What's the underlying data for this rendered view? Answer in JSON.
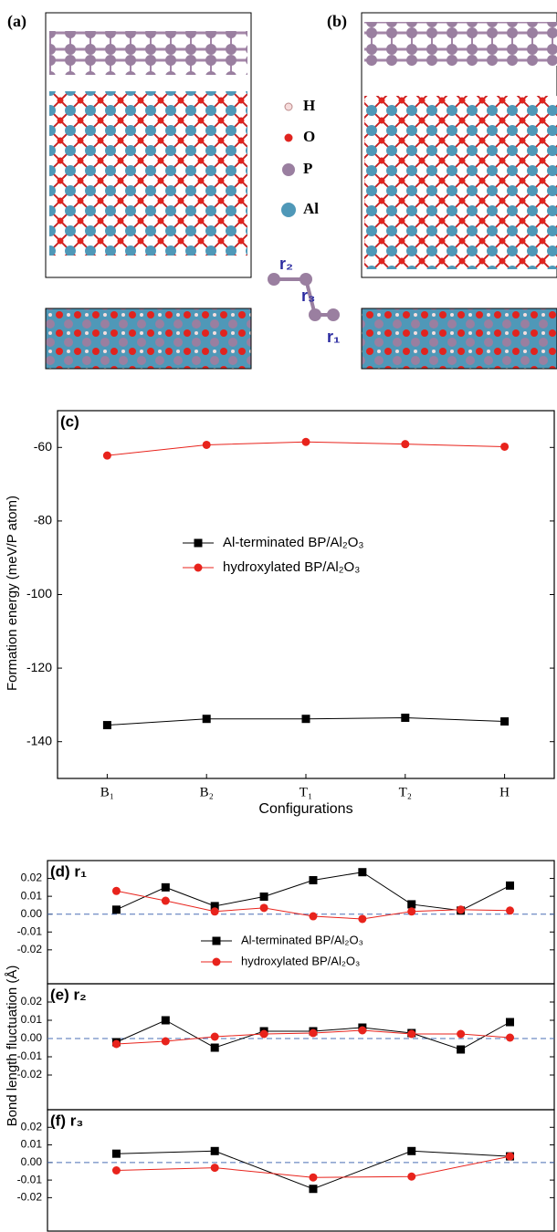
{
  "structure": {
    "panels": [
      "(a)",
      "(b)"
    ],
    "legend": [
      "H",
      "O",
      "P",
      "Al"
    ],
    "bonds": [
      "r₂",
      "r₃",
      "r₁"
    ]
  },
  "chart_data": [
    {
      "type": "line",
      "title": "(c)",
      "xlabel": "Configurations",
      "ylabel": "Formation energy (meV/P atom)",
      "categories": [
        "B₁",
        "B₂",
        "T₁",
        "T₂",
        "H"
      ],
      "ylim": [
        -150,
        -50
      ],
      "yticks": [
        -140,
        -120,
        -100,
        -80,
        -60
      ],
      "legend": "center",
      "series": [
        {
          "name": "Al-terminated BP/Al₂O₃",
          "color": "#000000",
          "marker": "square",
          "values": [
            -135.5,
            -133.8,
            -133.8,
            -133.5,
            -134.5
          ]
        },
        {
          "name": "hydroxylated  BP/Al₂O₃",
          "color": "#e8231c",
          "marker": "circle",
          "values": [
            -62.2,
            -59.3,
            -58.5,
            -59.1,
            -59.8
          ]
        }
      ]
    },
    {
      "type": "line",
      "title": "(d) r₁",
      "ylabel": "Bond length fluctuation (Å)",
      "x": [
        1,
        2,
        3,
        4,
        5,
        6,
        7,
        8,
        9
      ],
      "xlim": [
        -0.4,
        9.9
      ],
      "zero_line": true,
      "ylim": [
        -0.039,
        0.03
      ],
      "yticks": [
        0.02,
        0.01,
        {
          "value": 0,
          "label": "0.00"
        },
        -0.01,
        -0.02
      ],
      "legend": "center",
      "series": [
        {
          "name": "Al-terminated BP/Al₂O₃",
          "color": "#000000",
          "marker": "square",
          "values": [
            0.0025,
            0.015,
            0.0045,
            0.0098,
            0.019,
            0.0235,
            0.0055,
            0.002,
            0.016
          ]
        },
        {
          "name": "hydroxylated BP/Al₂O₃",
          "color": "#e8231c",
          "marker": "circle",
          "values": [
            0.013,
            0.0075,
            0.0015,
            0.0035,
            -0.0012,
            -0.0027,
            0.0015,
            0.0025,
            0.002
          ]
        }
      ]
    },
    {
      "type": "line",
      "title": "(e) r₂",
      "x": [
        1,
        2,
        3,
        4,
        5,
        6,
        7,
        8,
        9
      ],
      "xlim": [
        -0.4,
        9.9
      ],
      "zero_line": true,
      "ylim": [
        -0.039,
        0.03
      ],
      "yticks": [
        0.02,
        0.01,
        {
          "value": 0,
          "label": "0.00"
        },
        -0.01,
        -0.02
      ],
      "series": [
        {
          "color": "#000000",
          "marker": "square",
          "values": [
            -0.002,
            0.01,
            -0.005,
            0.004,
            0.004,
            0.006,
            0.003,
            -0.006,
            0.009
          ]
        },
        {
          "color": "#e8231c",
          "marker": "circle",
          "values": [
            -0.003,
            -0.0015,
            0.001,
            0.0025,
            0.003,
            0.0045,
            0.0025,
            0.0025,
            0.0005
          ]
        }
      ]
    },
    {
      "type": "line",
      "title": "(f) r₃",
      "x": [
        1,
        3,
        5,
        7,
        9
      ],
      "xlim": [
        -0.4,
        9.9
      ],
      "zero_line": true,
      "ylim": [
        -0.039,
        0.03
      ],
      "yticks": [
        0.02,
        0.01,
        {
          "value": 0,
          "label": "0.00"
        },
        -0.01,
        -0.02
      ],
      "series": [
        {
          "color": "#000000",
          "marker": "square",
          "values": [
            0.005,
            0.0065,
            -0.015,
            0.0065,
            0.0035
          ]
        },
        {
          "color": "#e8231c",
          "marker": "circle",
          "values": [
            -0.0045,
            -0.003,
            -0.0085,
            -0.008,
            0.0035
          ]
        }
      ]
    }
  ]
}
